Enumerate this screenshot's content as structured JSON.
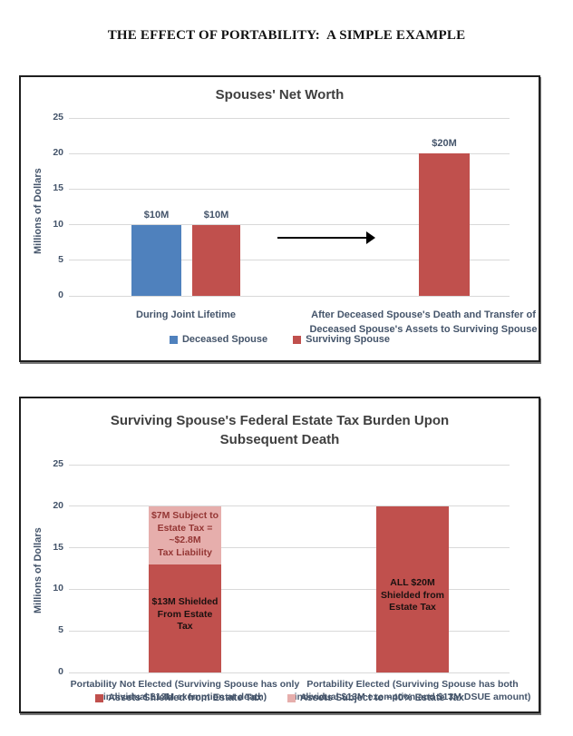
{
  "page": {
    "title": "THE EFFECT OF PORTABILITY:  A SIMPLE EXAMPLE"
  },
  "colors": {
    "deceased_blue": "#4F81BD",
    "surviving_red": "#C0504D",
    "subject_pink": "#E6AEAC",
    "gridline": "#D9D9D9",
    "axis_text": "#44546A",
    "chart_title_text": "#3F3F3F",
    "pink_segment_text": "#943634",
    "dark_segment_text": "#1A1110",
    "panel_border": "#1F1F1F",
    "arrow": "#000000"
  },
  "chart_data": [
    {
      "type": "bar",
      "title": "Spouses' Net Worth",
      "xlabel": "",
      "ylabel": "Millions of Dollars",
      "ylim": [
        0,
        25
      ],
      "yticks": [
        25,
        20,
        15,
        10,
        5,
        0
      ],
      "grid": true,
      "legend_position": "bottom",
      "categories": [
        "During Joint Lifetime",
        "After Deceased Spouse's Death and Transfer of Deceased Spouse's Assets to Surviving Spouse"
      ],
      "categories_lines": [
        [
          "During Joint Lifetime"
        ],
        [
          "After Deceased Spouse's Death and Transfer of",
          "Deceased Spouse's Assets to Surviving Spouse"
        ]
      ],
      "series": [
        {
          "name": "Deceased Spouse",
          "color": "#4F81BD",
          "values": [
            10,
            null
          ]
        },
        {
          "name": "Surviving Spouse",
          "color": "#C0504D",
          "values": [
            10,
            20
          ]
        }
      ],
      "data_labels": [
        "$10M",
        "$10M",
        "$20M"
      ],
      "annotation": "black right-pointing arrow between category groups"
    },
    {
      "type": "bar",
      "stacked": true,
      "title": "Surviving Spouse's Federal Estate Tax Burden Upon Subsequent Death",
      "title_lines": [
        "Surviving Spouse's Federal Estate Tax Burden Upon",
        "Subsequent Death"
      ],
      "xlabel": "",
      "ylabel": "Millions of Dollars",
      "ylim": [
        0,
        25
      ],
      "yticks": [
        25,
        20,
        15,
        10,
        5,
        0
      ],
      "grid": true,
      "legend_position": "bottom",
      "categories": [
        "Portability Not Elected (Surviving Spouse has only individual $13M exemption at death)",
        "Portability Elected (Surviving Spouse has both individual $13M exemption and $13M DSUE amount)"
      ],
      "categories_lines": [
        [
          "Portability Not Elected (Surviving Spouse has only",
          "individual $13M exemption at death)"
        ],
        [
          "Portability Elected (Surviving Spouse has both",
          "individual $13M exemption and $13M DSUE amount)"
        ]
      ],
      "series": [
        {
          "name": "Assets Shielded from Estate Tax",
          "color": "#C0504D",
          "values": [
            13,
            20
          ]
        },
        {
          "name": "Assets Subject to ~40% Estate Tax",
          "color": "#E6AEAC",
          "values": [
            7,
            0
          ]
        }
      ],
      "bar_labels": [
        {
          "segment": "subject-to-tax-cat1",
          "lines": [
            "$7M Subject to",
            "Estate Tax =",
            "~$2.8M",
            "Tax Liability"
          ]
        },
        {
          "segment": "shielded-cat1",
          "lines": [
            "$13M Shielded",
            "From Estate",
            "Tax"
          ]
        },
        {
          "segment": "shielded-cat2",
          "lines": [
            "ALL $20M",
            "Shielded from",
            "Estate Tax"
          ]
        }
      ]
    }
  ]
}
